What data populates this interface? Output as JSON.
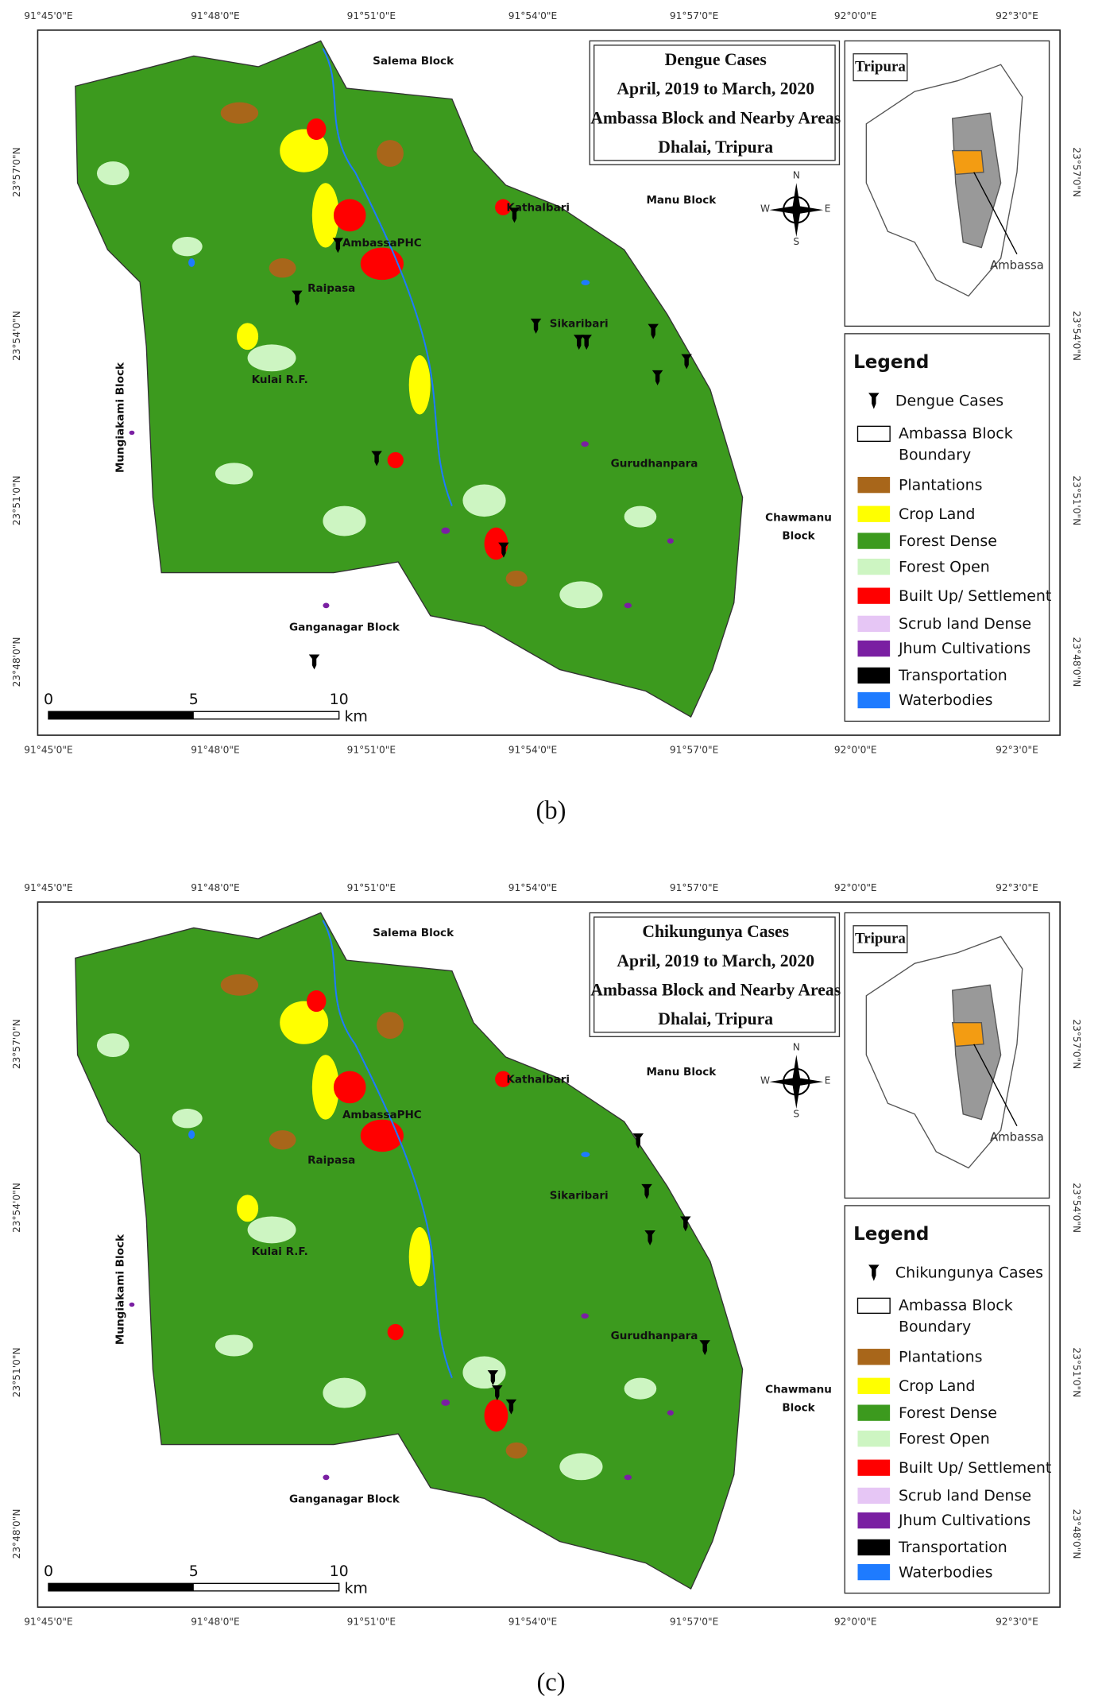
{
  "figures": [
    {
      "caption": "(b)",
      "title": [
        "Dengue Cases",
        "April, 2019 to March, 2020",
        "Ambassa Block and Nearby Areas",
        "Dhalai, Tripura"
      ],
      "top_axis": [
        "91°45'0\"E",
        "91°48'0\"E",
        "91°51'0\"E",
        "91°54'0\"E",
        "91°57'0\"E",
        "92°0'0\"E",
        "92°3'0\"E"
      ],
      "bottom_axis": [
        "91°45'0\"E",
        "91°48'0\"E",
        "91°51'0\"E",
        "91°54'0\"E",
        "91°57'0\"E",
        "92°0'0\"E",
        "92°3'0\"E"
      ],
      "left_axis": [
        "23°57'0\"N",
        "23°54'0\"N",
        "23°51'0\"N",
        "23°48'0\"N"
      ],
      "right_axis": [
        "23°57'0\"N",
        "23°54'0\"N",
        "23°51'0\"N",
        "23°48'0\"N"
      ],
      "places": [
        [
          "Salema Block"
        ],
        [
          "Manu Block"
        ],
        [
          "Kathalbari"
        ],
        [
          "AmbassaPHC"
        ],
        [
          "Raipasa"
        ],
        [
          "Sikaribari"
        ],
        [
          "Kulai R.F."
        ],
        [
          "Mungiakami Block"
        ],
        [
          "Gurudhanpara"
        ],
        [
          "Chawmanu",
          "Block"
        ],
        [
          "Ganganagar Block"
        ]
      ],
      "inset": {
        "title": "Tripura",
        "label": "Ambassa"
      },
      "north": {
        "n": "N",
        "s": "S",
        "w": "W",
        "e": "E"
      },
      "scale": [
        "0",
        "5",
        "10",
        "km"
      ],
      "legend": {
        "title": "Legend",
        "items": [
          {
            "label": [
              "Dengue Cases"
            ]
          },
          {
            "label": [
              "Ambassa Block",
              "Boundary"
            ]
          },
          {
            "label": [
              "Plantations"
            ],
            "color": "#a8661a"
          },
          {
            "label": [
              "Crop Land"
            ],
            "color": "#ffff00"
          },
          {
            "label": [
              "Forest Dense"
            ],
            "color": "#3c9a1e"
          },
          {
            "label": [
              "Forest Open"
            ],
            "color": "#cdf5c2"
          },
          {
            "label": [
              "Built Up/ Settlement"
            ],
            "color": "#ff0000"
          },
          {
            "label": [
              "Scrub land Dense"
            ],
            "color": "#e6c6f5"
          },
          {
            "label": [
              "Jhum Cultivations"
            ],
            "color": "#7a1fa2"
          },
          {
            "label": [
              "Transportation"
            ],
            "color": "#000000"
          },
          {
            "label": [
              "Waterbodies"
            ],
            "color": "#1e7bff"
          }
        ]
      }
    },
    {
      "caption": "(c)",
      "title": [
        "Chikungunya Cases",
        "April, 2019 to March, 2020",
        "Ambassa Block and Nearby Areas",
        "Dhalai, Tripura"
      ],
      "top_axis": [
        "91°45'0\"E",
        "91°48'0\"E",
        "91°51'0\"E",
        "91°54'0\"E",
        "91°57'0\"E",
        "92°0'0\"E",
        "92°3'0\"E"
      ],
      "bottom_axis": [
        "91°45'0\"E",
        "91°48'0\"E",
        "91°51'0\"E",
        "91°54'0\"E",
        "91°57'0\"E",
        "92°0'0\"E",
        "92°3'0\"E"
      ],
      "left_axis": [
        "23°57'0\"N",
        "23°54'0\"N",
        "23°51'0\"N",
        "23°48'0\"N"
      ],
      "right_axis": [
        "23°57'0\"N",
        "23°54'0\"N",
        "23°51'0\"N",
        "23°48'0\"N"
      ],
      "places": [
        [
          "Salema Block"
        ],
        [
          "Manu Block"
        ],
        [
          "Kathalbari"
        ],
        [
          "AmbassaPHC"
        ],
        [
          "Raipasa"
        ],
        [
          "Sikaribari"
        ],
        [
          "Kulai R.F."
        ],
        [
          "Mungiakami Block"
        ],
        [
          "Gurudhanpara"
        ],
        [
          "Chawmanu",
          "Block"
        ],
        [
          "Ganganagar Block"
        ]
      ],
      "inset": {
        "title": "Tripura",
        "label": "Ambassa"
      },
      "north": {
        "n": "N",
        "s": "S",
        "w": "W",
        "e": "E"
      },
      "scale": [
        "0",
        "5",
        "10",
        "km"
      ],
      "legend": {
        "title": "Legend",
        "items": [
          {
            "label": [
              "Chikungunya Cases"
            ]
          },
          {
            "label": [
              "Ambassa Block",
              "Boundary"
            ]
          },
          {
            "label": [
              "Plantations"
            ],
            "color": "#a8661a"
          },
          {
            "label": [
              "Crop Land"
            ],
            "color": "#ffff00"
          },
          {
            "label": [
              "Forest Dense"
            ],
            "color": "#3c9a1e"
          },
          {
            "label": [
              "Forest Open"
            ],
            "color": "#cdf5c2"
          },
          {
            "label": [
              "Built Up/ Settlement"
            ],
            "color": "#ff0000"
          },
          {
            "label": [
              "Scrub land Dense"
            ],
            "color": "#e6c6f5"
          },
          {
            "label": [
              "Jhum Cultivations"
            ],
            "color": "#7a1fa2"
          },
          {
            "label": [
              "Transportation"
            ],
            "color": "#000000"
          },
          {
            "label": [
              "Waterbodies"
            ],
            "color": "#1e7bff"
          }
        ]
      }
    }
  ]
}
